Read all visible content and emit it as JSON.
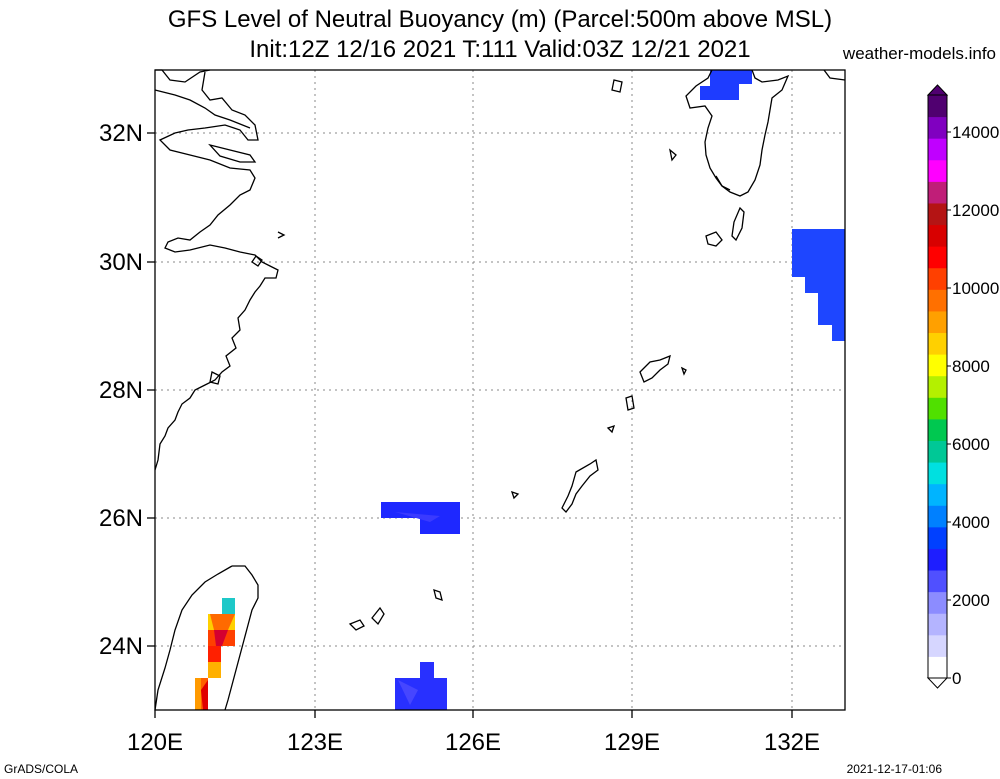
{
  "title": {
    "line1": "GFS Level of Neutral Buoyancy (m) (Parcel:500m above MSL)",
    "line2": "Init:12Z 12/16 2021 T:111 Valid:03Z 12/21 2021"
  },
  "site": "weather-models.info",
  "footer": {
    "left": "GrADS/COLA",
    "right": "2021-12-17-01:06"
  },
  "map": {
    "lon_range": [
      120,
      133
    ],
    "lat_range": [
      23,
      33
    ],
    "lon_ticks": [
      "120E",
      "123E",
      "126E",
      "129E",
      "132E"
    ],
    "lat_ticks": [
      "32N",
      "30N",
      "28N",
      "26N",
      "24N"
    ]
  },
  "colorbar": {
    "range": [
      0,
      15000
    ],
    "tick_labels": [
      "14000",
      "12000",
      "10000",
      "8000",
      "6000",
      "4000",
      "2000",
      "0"
    ],
    "colors": [
      "#ffffff",
      "#d6d6ff",
      "#b4b4ff",
      "#8c8cff",
      "#5050ff",
      "#1e1eff",
      "#0040ff",
      "#0080ff",
      "#00b4ff",
      "#00e0e0",
      "#00c896",
      "#00c850",
      "#50e000",
      "#b4f000",
      "#ffff00",
      "#ffd000",
      "#ffa000",
      "#ff7000",
      "#ff4000",
      "#ff0000",
      "#d80000",
      "#b41414",
      "#c01e78",
      "#ff00ff",
      "#c000ff",
      "#8000c0",
      "#500070"
    ]
  }
}
